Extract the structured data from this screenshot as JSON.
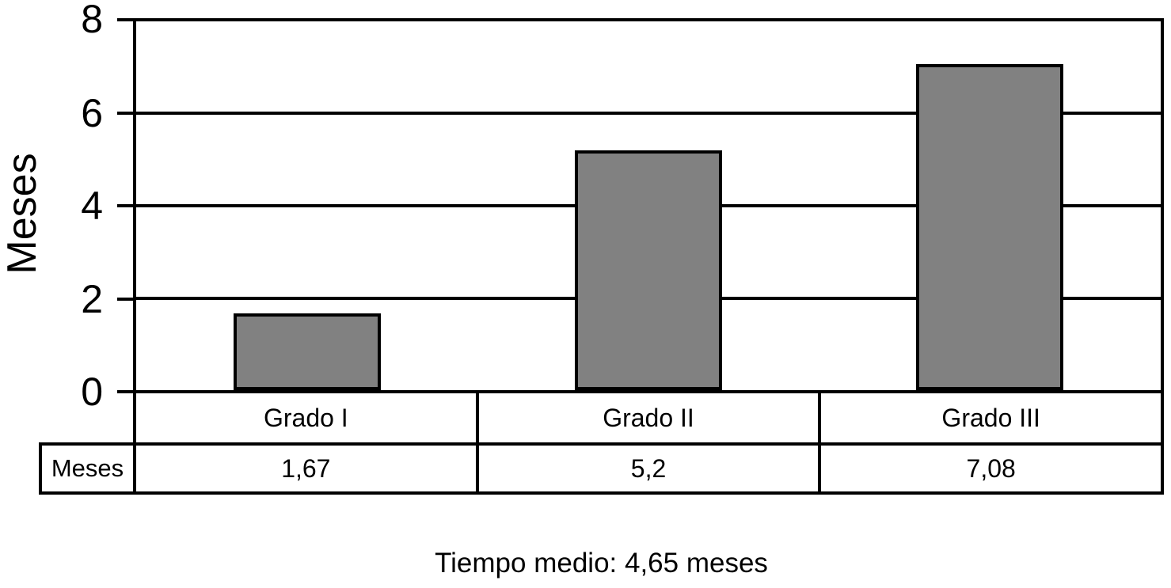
{
  "chart_data": {
    "type": "bar",
    "categories": [
      "Grado I",
      "Grado II",
      "Grado III"
    ],
    "values": [
      1.67,
      5.2,
      7.08
    ],
    "value_labels": [
      "1,67",
      "5,2",
      "7,08"
    ],
    "series_label": "Meses",
    "title": "",
    "xlabel": "",
    "ylabel": "Meses",
    "ylim": [
      0,
      8
    ],
    "yticks": [
      8,
      6,
      4,
      2,
      0
    ],
    "grid": true,
    "legend_position": "table-below",
    "bar_color": "#818181",
    "line_color": "#000000",
    "caption": "Tiempo medio: 4,65 meses"
  }
}
